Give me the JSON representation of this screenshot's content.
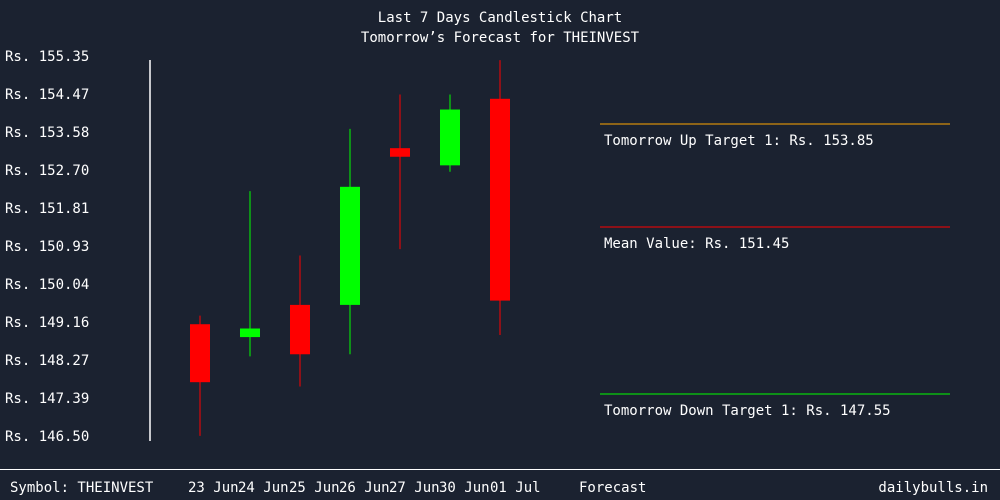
{
  "header": {
    "title": "Last 7 Days Candlestick Chart",
    "subtitle": "Tomorrow’s Forecast for THEINVEST"
  },
  "footer": {
    "symbol_label": "Symbol: THEINVEST",
    "forecast_label": "Forecast",
    "brand": "dailybulls.in"
  },
  "colors": {
    "background": "#1b2230",
    "up": "#00ff00",
    "down": "#ff0000",
    "up_target_line": "#ffa500",
    "mean_line": "#ff0000",
    "down_target_line": "#00ff00",
    "axis": "#ffffff"
  },
  "chart_data": {
    "type": "candlestick",
    "title": "Last 7 Days Candlestick Chart",
    "subtitle": "Tomorrow’s Forecast for THEINVEST",
    "ylim": [
      146.5,
      155.35
    ],
    "y_ticks": [
      "Rs. 155.35",
      "Rs. 154.47",
      "Rs. 153.58",
      "Rs. 152.70",
      "Rs. 151.81",
      "Rs. 150.93",
      "Rs. 150.04",
      "Rs. 149.16",
      "Rs. 148.27",
      "Rs. 147.39",
      "Rs. 146.50"
    ],
    "y_tick_values": [
      155.35,
      154.47,
      153.58,
      152.7,
      151.81,
      150.93,
      150.04,
      149.16,
      148.27,
      147.39,
      146.5
    ],
    "categories": [
      "23 Jun",
      "24 Jun",
      "25 Jun",
      "26 Jun",
      "27 Jun",
      "30 Jun",
      "01 Jul"
    ],
    "candles": [
      {
        "date": "23 Jun",
        "open": 149.15,
        "close": 147.8,
        "high": 149.35,
        "low": 146.55
      },
      {
        "date": "24 Jun",
        "open": 148.85,
        "close": 149.05,
        "high": 152.25,
        "low": 148.4
      },
      {
        "date": "25 Jun",
        "open": 149.6,
        "close": 148.45,
        "high": 150.75,
        "low": 147.7
      },
      {
        "date": "26 Jun",
        "open": 149.6,
        "close": 152.35,
        "high": 153.7,
        "low": 148.45
      },
      {
        "date": "27 Jun",
        "open": 153.25,
        "close": 153.05,
        "high": 154.5,
        "low": 150.9
      },
      {
        "date": "30 Jun",
        "open": 152.85,
        "close": 154.15,
        "high": 154.5,
        "low": 152.7
      },
      {
        "date": "01 Jul",
        "open": 154.4,
        "close": 149.7,
        "high": 155.3,
        "low": 148.9
      }
    ],
    "forecast": {
      "up_target_1": {
        "label": "Tomorrow Up Target 1: Rs. 153.85",
        "value": 153.85
      },
      "mean": {
        "label": "Mean Value: Rs. 151.45",
        "value": 151.45
      },
      "down_target_1": {
        "label": "Tomorrow Down Target 1: Rs. 147.55",
        "value": 147.55
      }
    }
  }
}
